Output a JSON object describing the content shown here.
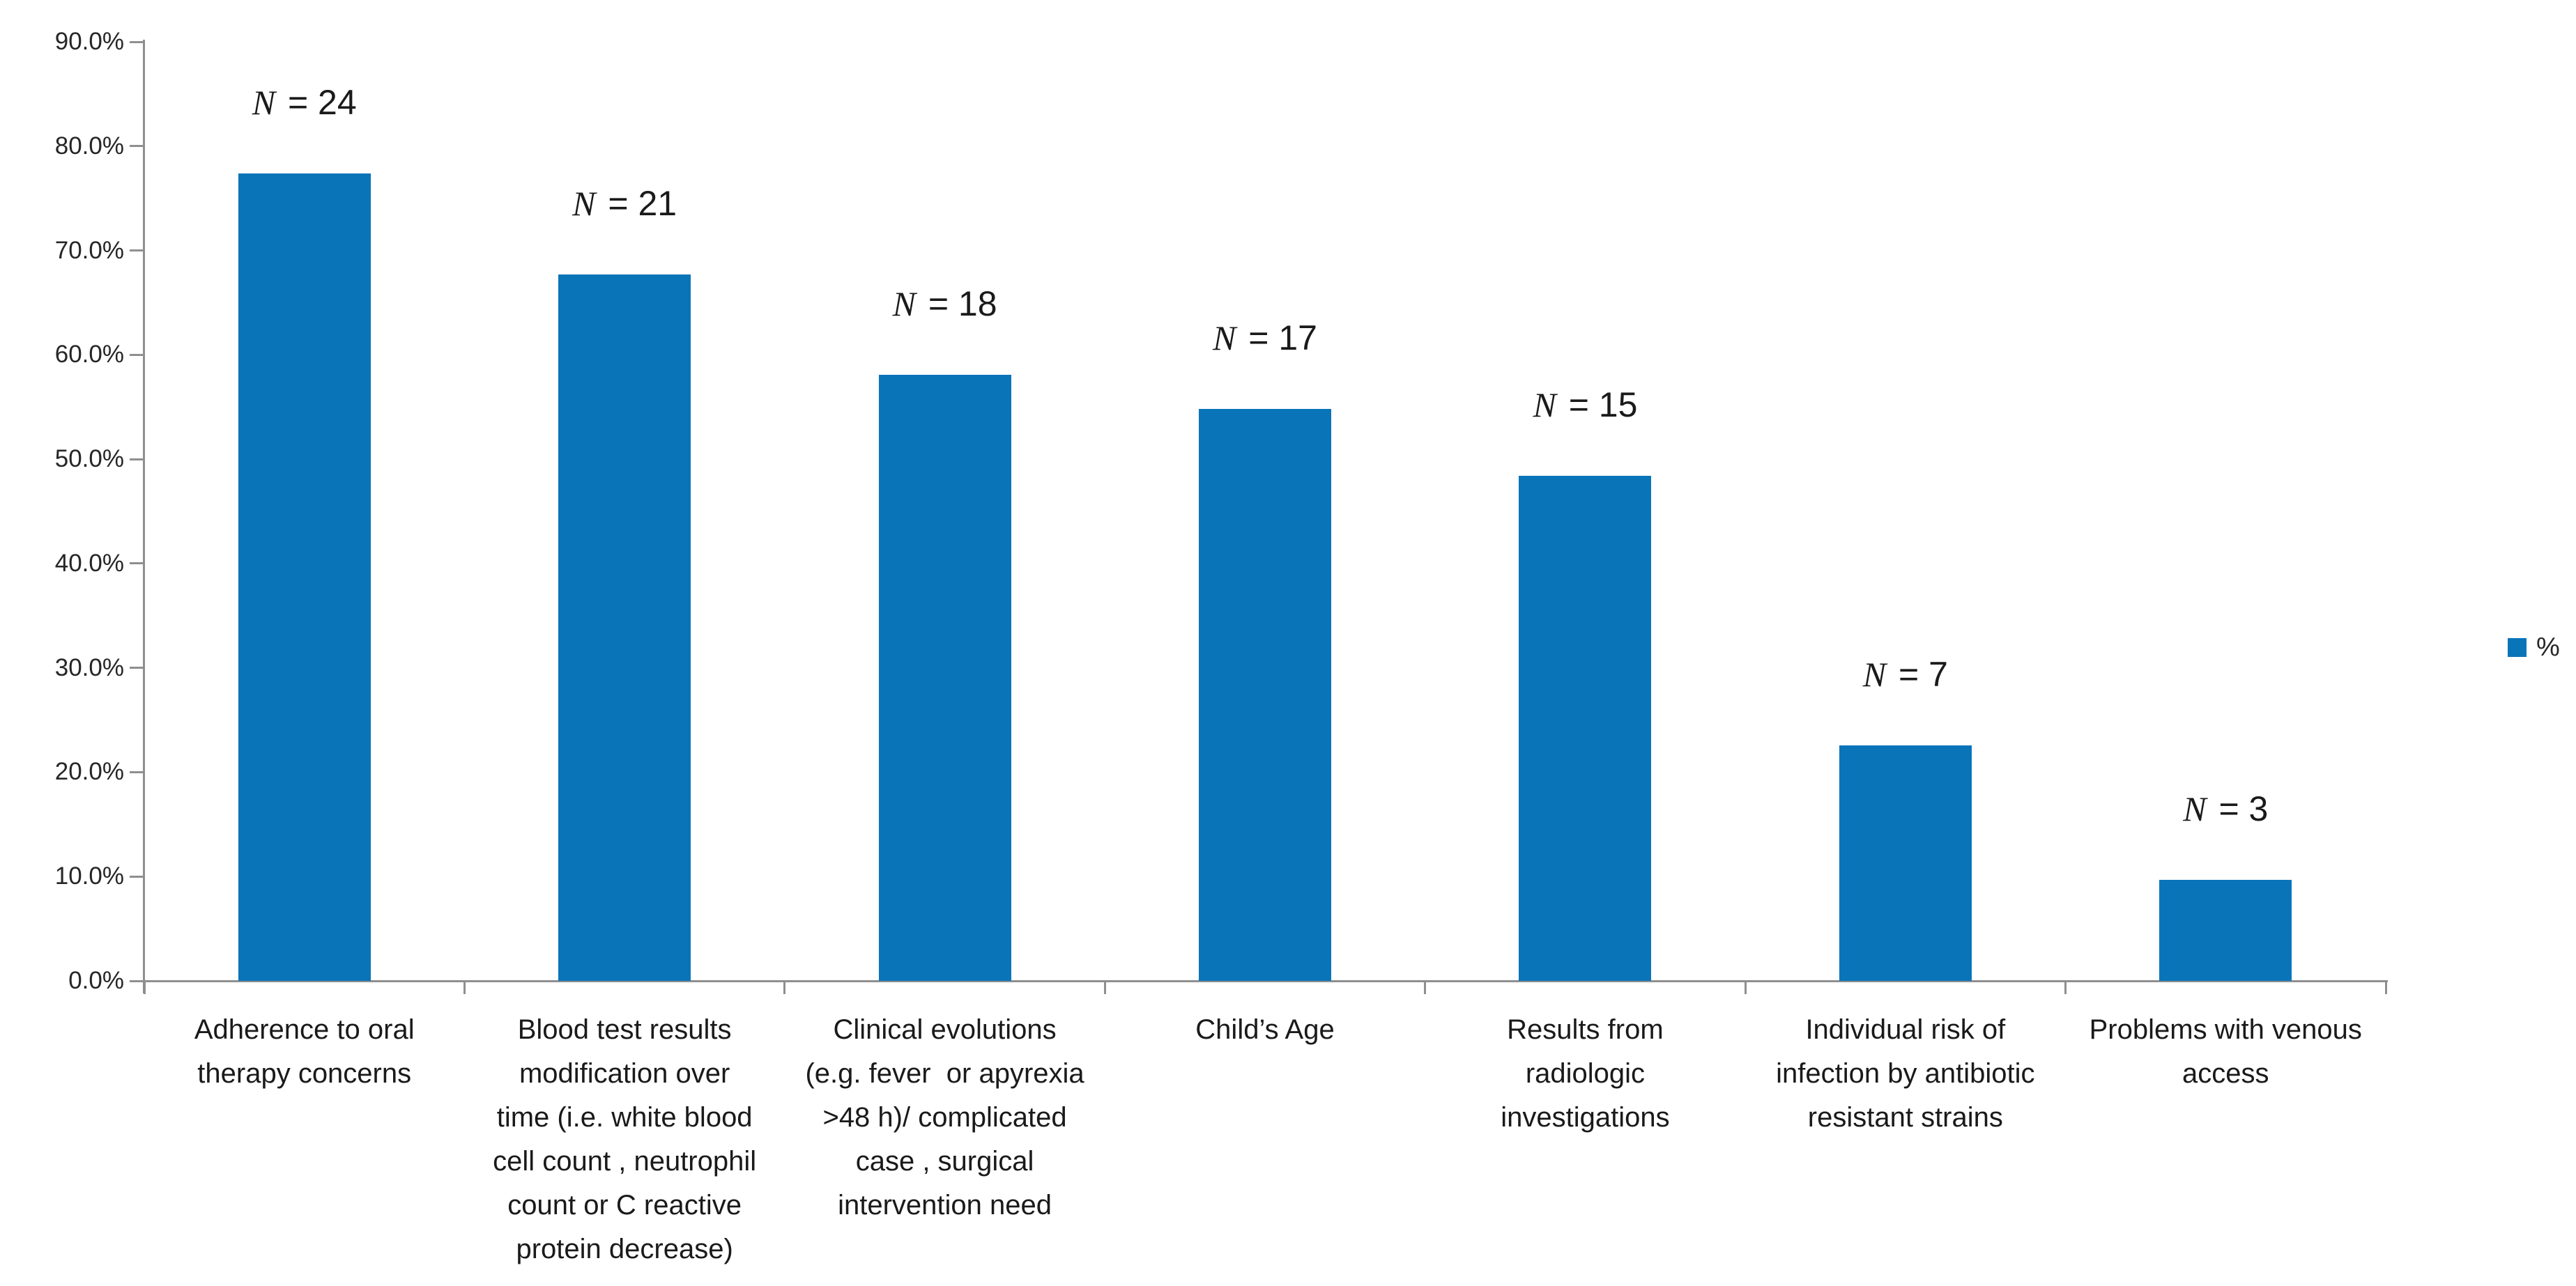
{
  "chart_data": {
    "type": "bar",
    "title": "",
    "xlabel": "",
    "ylabel": "",
    "ylim": [
      0,
      90
    ],
    "grid": false,
    "legend_position": "right",
    "legend_label": "%",
    "bar_color": "#0a74b9",
    "axis_color": "#8f8f8f",
    "text_color": "#1a1a1a",
    "y_ticks": [
      "0.0%",
      "10.0%",
      "20.0%",
      "30.0%",
      "40.0%",
      "50.0%",
      "60.0%",
      "70.0%",
      "80.0%",
      "90.0%"
    ],
    "categories": [
      "Adherence to oral\ntherapy concerns",
      "Blood test results\nmodification over\ntime (i.e. white blood\ncell count , neutrophil\ncount or C reactive\nprotein decrease)",
      "Clinical evolutions\n(e.g. fever  or apyrexia\n>48 h)/ complicated\ncase , surgical\nintervention need",
      "Child’s Age",
      "Results from\nradiologic\ninvestigations",
      "Individual risk of\ninfection by antibiotic\nresistant strains",
      "Problems with venous\naccess"
    ],
    "bar_value_labels": [
      "N = 24",
      "N = 21",
      "N = 18",
      "N = 17",
      "N = 15",
      "N = 7",
      "N = 3"
    ],
    "counts": [
      24,
      21,
      18,
      17,
      15,
      7,
      3
    ],
    "series": [
      {
        "name": "%",
        "values": [
          77.4,
          67.7,
          58.1,
          54.8,
          48.4,
          22.6,
          9.7
        ]
      }
    ]
  }
}
